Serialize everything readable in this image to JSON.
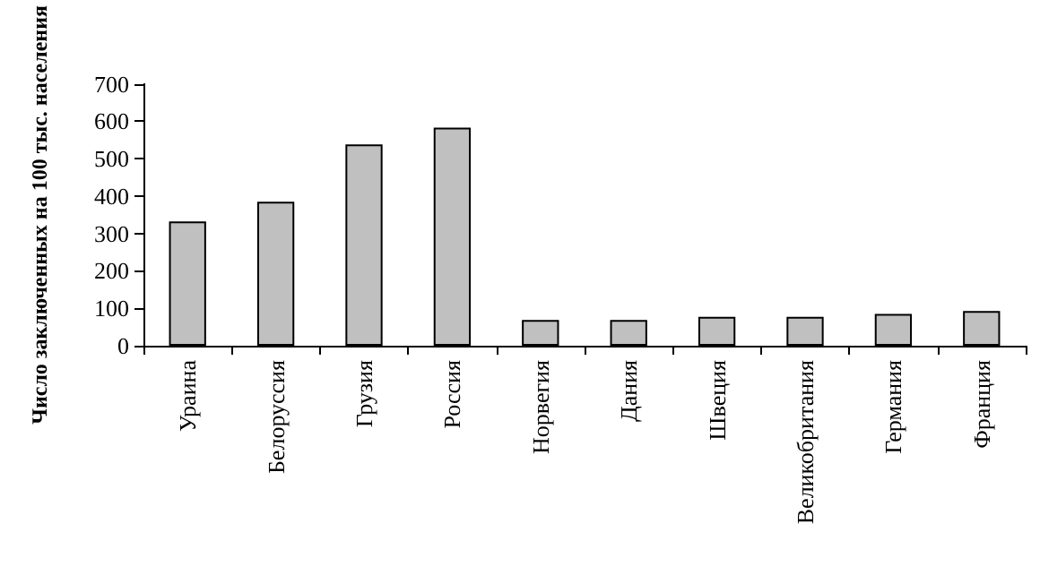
{
  "chart_data": {
    "type": "bar",
    "ylabel": "Число заключенных на 100 тыс. населения",
    "categories": [
      "Ураина",
      "Белоруссия",
      "Грузия",
      "Россия",
      "Норвегия",
      "Дания",
      "Швеция",
      "Великобритания",
      "Германия",
      "Франция"
    ],
    "values": [
      332,
      385,
      538,
      583,
      69,
      69,
      77,
      77,
      85,
      93
    ],
    "color": "#c0c0c0",
    "ylim": [
      0,
      700
    ],
    "yticks": [
      0,
      100,
      200,
      300,
      400,
      500,
      600,
      700
    ],
    "grid": false
  }
}
